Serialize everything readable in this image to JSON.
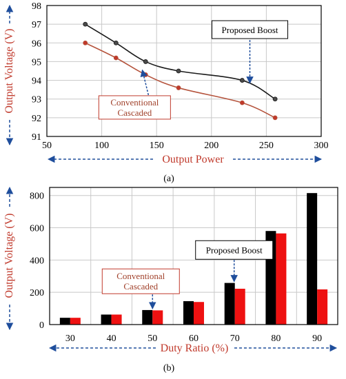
{
  "colors": {
    "proposed_line": "#1a1a1a",
    "conventional_line": "#b5533c",
    "proposed_bar": "#000000",
    "conventional_bar": "#ee1111",
    "axis_title": "#c0392b",
    "arrow": "#1f4e9c",
    "grid": "#c8c8c8"
  },
  "chart_data": [
    {
      "type": "line",
      "caption": "(a)",
      "xlabel": "Output Power",
      "ylabel": "Output Voltage (V)",
      "xlim": [
        50,
        300
      ],
      "ylim": [
        91,
        98
      ],
      "xticks": [
        50,
        100,
        150,
        200,
        250,
        300
      ],
      "yticks": [
        91,
        92,
        93,
        94,
        95,
        96,
        97,
        98
      ],
      "grid": true,
      "series": [
        {
          "name": "Proposed Boost",
          "x": [
            85,
            113,
            140,
            170,
            228,
            258
          ],
          "y": [
            97.0,
            96.0,
            95.0,
            94.5,
            94.0,
            93.0
          ]
        },
        {
          "name": "Conventional Cascaded",
          "x": [
            85,
            113,
            140,
            170,
            228,
            258
          ],
          "y": [
            96.0,
            95.2,
            94.3,
            93.6,
            92.8,
            92.0
          ]
        }
      ],
      "annotations": [
        {
          "text": "Proposed Boost",
          "series": 0
        },
        {
          "text_lines": [
            "Conventional",
            "Cascaded"
          ],
          "series": 1
        }
      ]
    },
    {
      "type": "bar",
      "caption": "(b)",
      "xlabel": "Duty Ratio (%)",
      "ylabel": "Output Voltage (V)",
      "ylim": [
        0,
        850
      ],
      "yticks": [
        0,
        200,
        400,
        600,
        800
      ],
      "grid": true,
      "categories": [
        "30",
        "40",
        "50",
        "60",
        "70",
        "80",
        "90"
      ],
      "series": [
        {
          "name": "Proposed Boost",
          "values": [
            42,
            62,
            90,
            145,
            258,
            580,
            815
          ]
        },
        {
          "name": "Conventional Cascaded",
          "values": [
            42,
            62,
            88,
            140,
            222,
            565,
            218
          ]
        }
      ],
      "annotations": [
        {
          "text": "Proposed Boost",
          "category_index": 4
        },
        {
          "text_lines": [
            "Conventional",
            "Cascaded"
          ],
          "category_index": 2
        }
      ]
    }
  ]
}
